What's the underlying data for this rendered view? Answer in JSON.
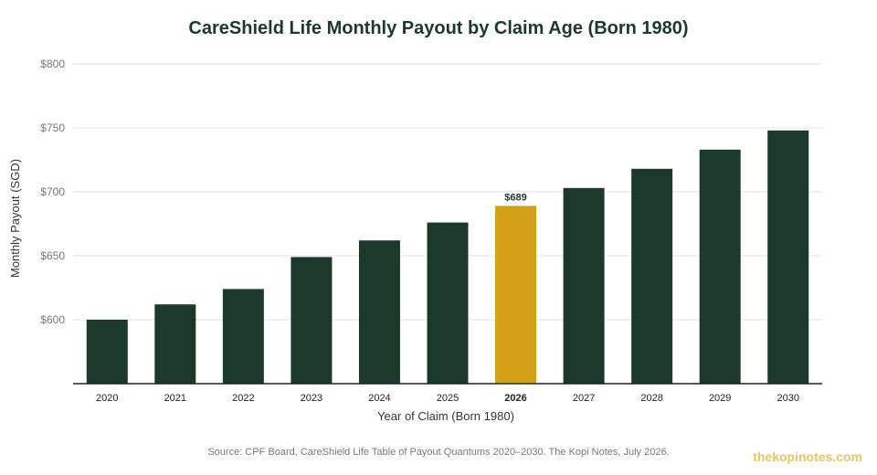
{
  "chart_data": {
    "type": "bar",
    "title": "CareShield Life Monthly Payout by Claim Age (Born 1980)",
    "xlabel": "Year of Claim (Born 1980)",
    "ylabel": "Monthly Payout (SGD)",
    "categories": [
      "2020",
      "2021",
      "2022",
      "2023",
      "2024",
      "2025",
      "2026",
      "2027",
      "2028",
      "2029",
      "2030"
    ],
    "values": [
      600,
      612,
      624,
      649,
      662,
      676,
      689,
      703,
      718,
      733,
      748
    ],
    "ylim": [
      550,
      800
    ],
    "yticks": [
      600,
      650,
      700,
      750,
      800
    ],
    "ytick_labels": [
      "$600",
      "$650",
      "$700",
      "$750",
      "$800"
    ],
    "highlight": {
      "category": "2026",
      "label": "$689"
    },
    "colors": {
      "bar": "#1c3a2b",
      "highlight": "#d4a01a",
      "title": "#1c3a2b",
      "grid": "#e3e3e3",
      "axis": "#222222"
    },
    "grid": true
  },
  "footer": {
    "source": "Source: CPF Board, CareShield Life Table of Payout Quantums 2020–2030. The Kopi Notes, July 2026.",
    "watermark": "thekopinotes.com"
  }
}
